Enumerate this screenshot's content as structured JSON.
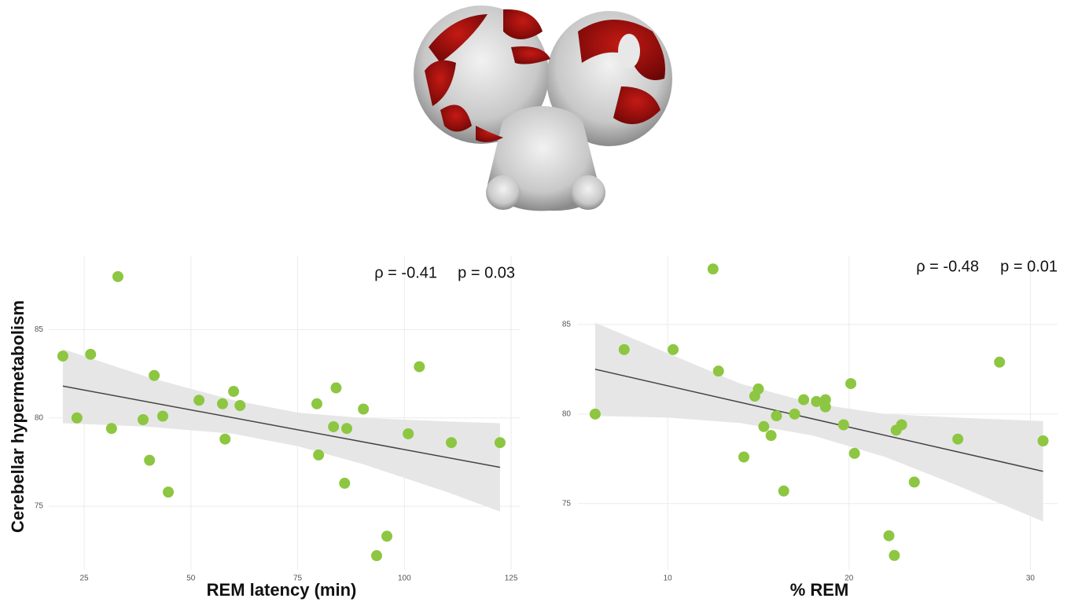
{
  "chart_data": [
    {
      "type": "scatter",
      "x_label": "REM latency (min)",
      "y_label": "Cerebellar hypermetabolism",
      "annotation": [
        "ρ = -0.41",
        "p = 0.03"
      ],
      "x": [
        20.0,
        26.5,
        23.3,
        32.9,
        31.4,
        38.8,
        40.3,
        41.4,
        43.4,
        44.7,
        51.9,
        57.4,
        58.0,
        60.0,
        61.5,
        79.5,
        79.9,
        83.4,
        84.0,
        86.5,
        86.0,
        90.4,
        93.5,
        95.9,
        100.9,
        103.5,
        111.0,
        122.4
      ],
      "values": [
        83.5,
        83.6,
        80.0,
        88.0,
        79.4,
        79.9,
        77.6,
        82.4,
        80.1,
        75.8,
        81.0,
        80.8,
        78.8,
        81.5,
        80.7,
        80.8,
        77.9,
        79.5,
        81.7,
        79.4,
        76.3,
        80.5,
        72.2,
        73.3,
        79.1,
        82.9,
        78.6,
        78.6
      ],
      "color": "#8dc641",
      "fit": {
        "x": [
          20.0,
          122.4
        ],
        "values": [
          81.8,
          77.2
        ],
        "color": "#444444"
      },
      "band": {
        "x": [
          20,
          40,
          60,
          75,
          90,
          110,
          122.4
        ],
        "upper": [
          83.9,
          82.3,
          81.0,
          80.3,
          80.0,
          79.8,
          79.7
        ],
        "lower": [
          79.7,
          79.5,
          79.1,
          78.4,
          77.4,
          75.8,
          74.7
        ],
        "color": "#e6e6e6"
      },
      "xlim": [
        16.7,
        127.2
      ],
      "ylim": [
        71.4,
        89.2
      ],
      "xticks": [
        25,
        50,
        75,
        100,
        125
      ],
      "yticks": [
        75,
        80,
        85
      ],
      "grid": true
    },
    {
      "type": "scatter",
      "x_label": "% REM",
      "annotation": [
        "ρ = -0.48",
        "p = 0.01"
      ],
      "x": [
        6.0,
        7.6,
        10.3,
        12.5,
        12.8,
        14.2,
        14.8,
        15.0,
        15.3,
        15.7,
        16.0,
        16.4,
        17.0,
        17.5,
        18.2,
        18.7,
        18.7,
        19.7,
        20.1,
        20.3,
        22.2,
        22.5,
        22.6,
        22.9,
        23.6,
        26.0,
        28.3,
        30.7
      ],
      "values": [
        80.0,
        83.6,
        83.6,
        88.1,
        82.4,
        77.6,
        81.0,
        81.4,
        79.3,
        78.8,
        79.9,
        75.7,
        80.0,
        80.8,
        80.7,
        80.8,
        80.4,
        79.4,
        81.7,
        77.8,
        73.2,
        72.1,
        79.1,
        79.4,
        76.2,
        78.6,
        82.9,
        78.5
      ],
      "color": "#8dc641",
      "fit": {
        "x": [
          6.0,
          30.7
        ],
        "values": [
          82.5,
          76.8
        ],
        "color": "#444444"
      },
      "band": {
        "x": [
          6,
          10,
          14,
          18,
          22,
          26,
          30.7
        ],
        "upper": [
          85.1,
          83.4,
          81.7,
          80.6,
          80.0,
          79.8,
          79.6
        ],
        "lower": [
          79.9,
          79.8,
          79.5,
          78.8,
          77.6,
          76.0,
          74.0
        ],
        "color": "#e6e6e6"
      },
      "xlim": [
        5.05,
        31.5
      ],
      "ylim": [
        71.3,
        88.86
      ],
      "xticks": [
        10,
        20,
        30
      ],
      "yticks": [
        75,
        80,
        85
      ],
      "grid": true
    }
  ]
}
